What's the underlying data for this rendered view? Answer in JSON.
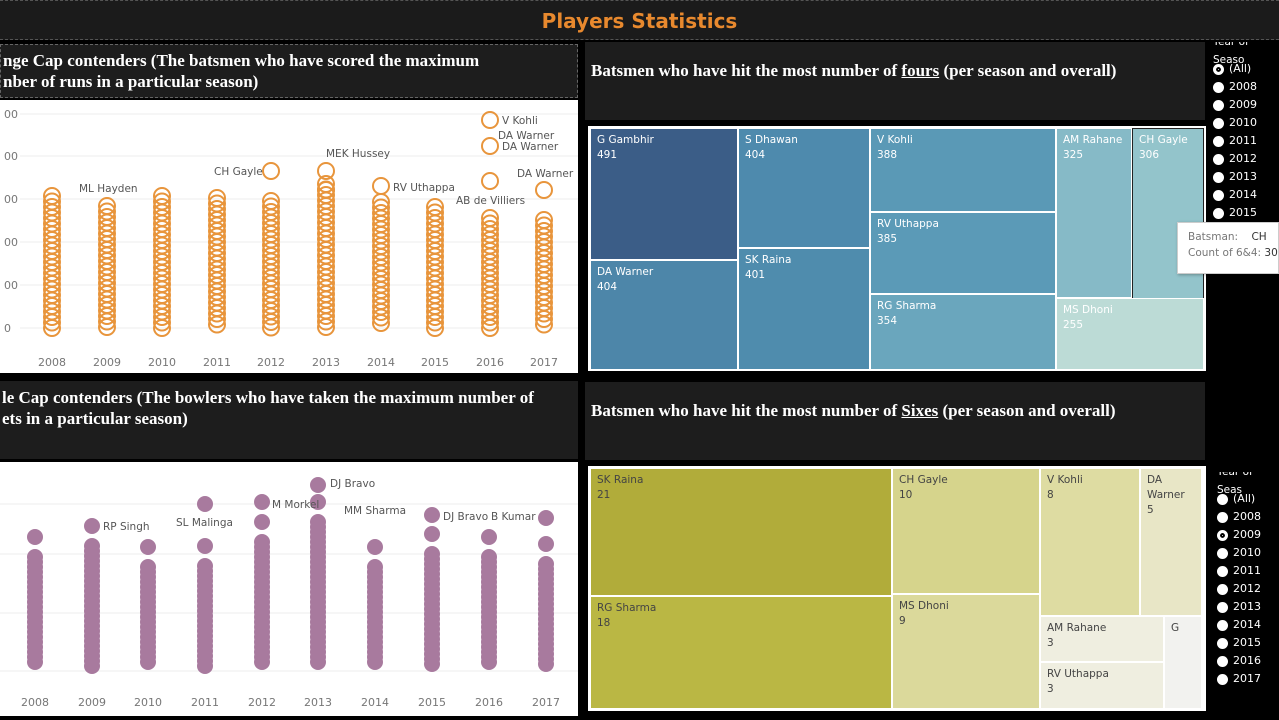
{
  "page": {
    "title": "Players Statistics"
  },
  "orange_cap": {
    "header": "nge Cap contenders (The batsmen who have scored the maximum number of runs in a particular season)",
    "header_line1": "nge Cap contenders (The batsmen who have scored the maximum",
    "header_line2": "nber of runs in a particular season)",
    "color": "#e8953c",
    "y_ticks": [
      "00",
      "00",
      "00",
      "00",
      "00",
      "0"
    ],
    "years": [
      "2008",
      "2009",
      "2010",
      "2011",
      "2012",
      "2013",
      "2014",
      "2015",
      "2016",
      "2017"
    ],
    "annotations": [
      "ML Hayden",
      "CH Gayle",
      "MEK Hussey",
      "RV Uthappa",
      "AB de Villiers",
      "V Kohli",
      "DA Warner",
      "DA Warner"
    ],
    "legend_bubbles": [
      "V Kohli",
      "DA Warner"
    ]
  },
  "purple_cap": {
    "header_line1": "le Cap contenders (The bowlers who have taken the maximum number of",
    "header_line2": "ets in a particular season)",
    "color": "#a87a9e",
    "years": [
      "2008",
      "2009",
      "2010",
      "2011",
      "2012",
      "2013",
      "2014",
      "2015",
      "2016",
      "2017"
    ],
    "annotations": [
      "RP Singh",
      "SL Malinga",
      "M Morkel",
      "DJ Bravo",
      "MM Sharma",
      "DJ Bravo",
      "B Kumar"
    ]
  },
  "fours": {
    "header_pre": "Batsmen who have hit the most number of ",
    "header_em": "fours",
    "header_post": "  (per season and overall)",
    "cells": [
      {
        "name": "G Gambhir",
        "value": "491",
        "color": "#3b5d87"
      },
      {
        "name": "DA Warner",
        "value": "404",
        "color": "#4d86a9"
      },
      {
        "name": "S Dhawan",
        "value": "404",
        "color": "#4e8aad"
      },
      {
        "name": "SK Raina",
        "value": "401",
        "color": "#4f8cad"
      },
      {
        "name": "V Kohli",
        "value": "388",
        "color": "#5a99b6"
      },
      {
        "name": "RV Uthappa",
        "value": "385",
        "color": "#5b9ab7"
      },
      {
        "name": "RG Sharma",
        "value": "354",
        "color": "#6aa6bd"
      },
      {
        "name": "AM Rahane",
        "value": "325",
        "color": "#86bac7"
      },
      {
        "name": "CH Gayle",
        "value": "306",
        "color": "#93c4cb"
      },
      {
        "name": "MS Dhoni",
        "value": "255",
        "color": "#bcdbd6"
      }
    ],
    "tooltip": {
      "label1": "Batsman:",
      "value1": "CH",
      "label2": "Count of 6&4:",
      "value2": "30"
    }
  },
  "sixes": {
    "header_pre": "Batsmen who have hit the most number of ",
    "header_em": "Sixes",
    "header_post": "  (per season and overall)",
    "cells": [
      {
        "name": "SK Raina",
        "value": "21",
        "color": "#b1ac3a"
      },
      {
        "name": "RG Sharma",
        "value": "18",
        "color": "#bab744"
      },
      {
        "name": "CH Gayle",
        "value": "10",
        "color": "#d6d48c"
      },
      {
        "name": "MS Dhoni",
        "value": "9",
        "color": "#dbd99b"
      },
      {
        "name": "V Kohli",
        "value": "8",
        "color": "#dedca2"
      },
      {
        "name": "DA Warner",
        "value": "5",
        "color": "#e8e6c6"
      },
      {
        "name": "AM Rahane",
        "value": "3",
        "color": "#efeee0"
      },
      {
        "name": "RV Uthappa",
        "value": "3",
        "color": "#efeee0"
      },
      {
        "name": "G",
        "value": "",
        "color": "#f2f2ef"
      }
    ]
  },
  "filter_top": {
    "title": "Year of Seaso",
    "options": [
      "(All)",
      "2008",
      "2009",
      "2010",
      "2011",
      "2012",
      "2013",
      "2014",
      "2015"
    ],
    "selected": "(All)"
  },
  "filter_bottom": {
    "title": "Year of Seas",
    "options": [
      "(All)",
      "2008",
      "2009",
      "2010",
      "2011",
      "2012",
      "2013",
      "2014",
      "2015",
      "2016",
      "2017"
    ],
    "selected": "2009"
  }
}
